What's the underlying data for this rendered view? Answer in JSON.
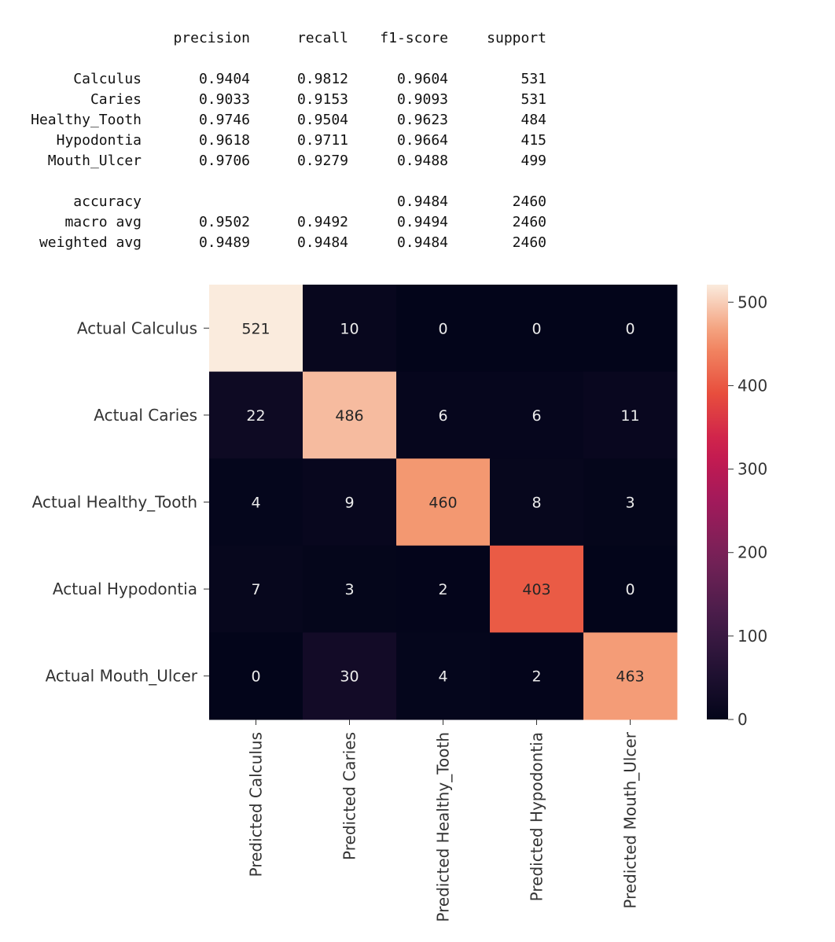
{
  "classification_report": {
    "headers": [
      "precision",
      "recall",
      "f1-score",
      "support"
    ],
    "rows": [
      {
        "label": "Calculus",
        "precision": "0.9404",
        "recall": "0.9812",
        "f1": "0.9604",
        "support": "531"
      },
      {
        "label": "Caries",
        "precision": "0.9033",
        "recall": "0.9153",
        "f1": "0.9093",
        "support": "531"
      },
      {
        "label": "Healthy_Tooth",
        "precision": "0.9746",
        "recall": "0.9504",
        "f1": "0.9623",
        "support": "484"
      },
      {
        "label": "Hypodontia",
        "precision": "0.9618",
        "recall": "0.9711",
        "f1": "0.9664",
        "support": "415"
      },
      {
        "label": "Mouth_Ulcer",
        "precision": "0.9706",
        "recall": "0.9279",
        "f1": "0.9488",
        "support": "499"
      }
    ],
    "summary": [
      {
        "label": "accuracy",
        "precision": "",
        "recall": "",
        "f1": "0.9484",
        "support": "2460"
      },
      {
        "label": "macro avg",
        "precision": "0.9502",
        "recall": "0.9492",
        "f1": "0.9494",
        "support": "2460"
      },
      {
        "label": "weighted avg",
        "precision": "0.9489",
        "recall": "0.9484",
        "f1": "0.9484",
        "support": "2460"
      }
    ]
  },
  "chart_data": {
    "type": "heatmap",
    "title": "",
    "xlabel": "",
    "ylabel": "",
    "row_labels": [
      "Actual Calculus",
      "Actual Caries",
      "Actual Healthy_Tooth",
      "Actual Hypodontia",
      "Actual Mouth_Ulcer"
    ],
    "col_labels": [
      "Predicted Calculus",
      "Predicted Caries",
      "Predicted Healthy_Tooth",
      "Predicted Hypodontia",
      "Predicted Mouth_Ulcer"
    ],
    "values": [
      [
        521,
        10,
        0,
        0,
        0
      ],
      [
        22,
        486,
        6,
        6,
        11
      ],
      [
        4,
        9,
        460,
        8,
        3
      ],
      [
        7,
        3,
        2,
        403,
        0
      ],
      [
        0,
        30,
        4,
        2,
        463
      ]
    ],
    "colormap": "rocket",
    "colorbar": {
      "range": [
        0,
        521
      ],
      "ticks": [
        0,
        100,
        200,
        300,
        400,
        500
      ]
    },
    "light_text_color": "#ebebeb",
    "dark_text_color": "#262626"
  }
}
